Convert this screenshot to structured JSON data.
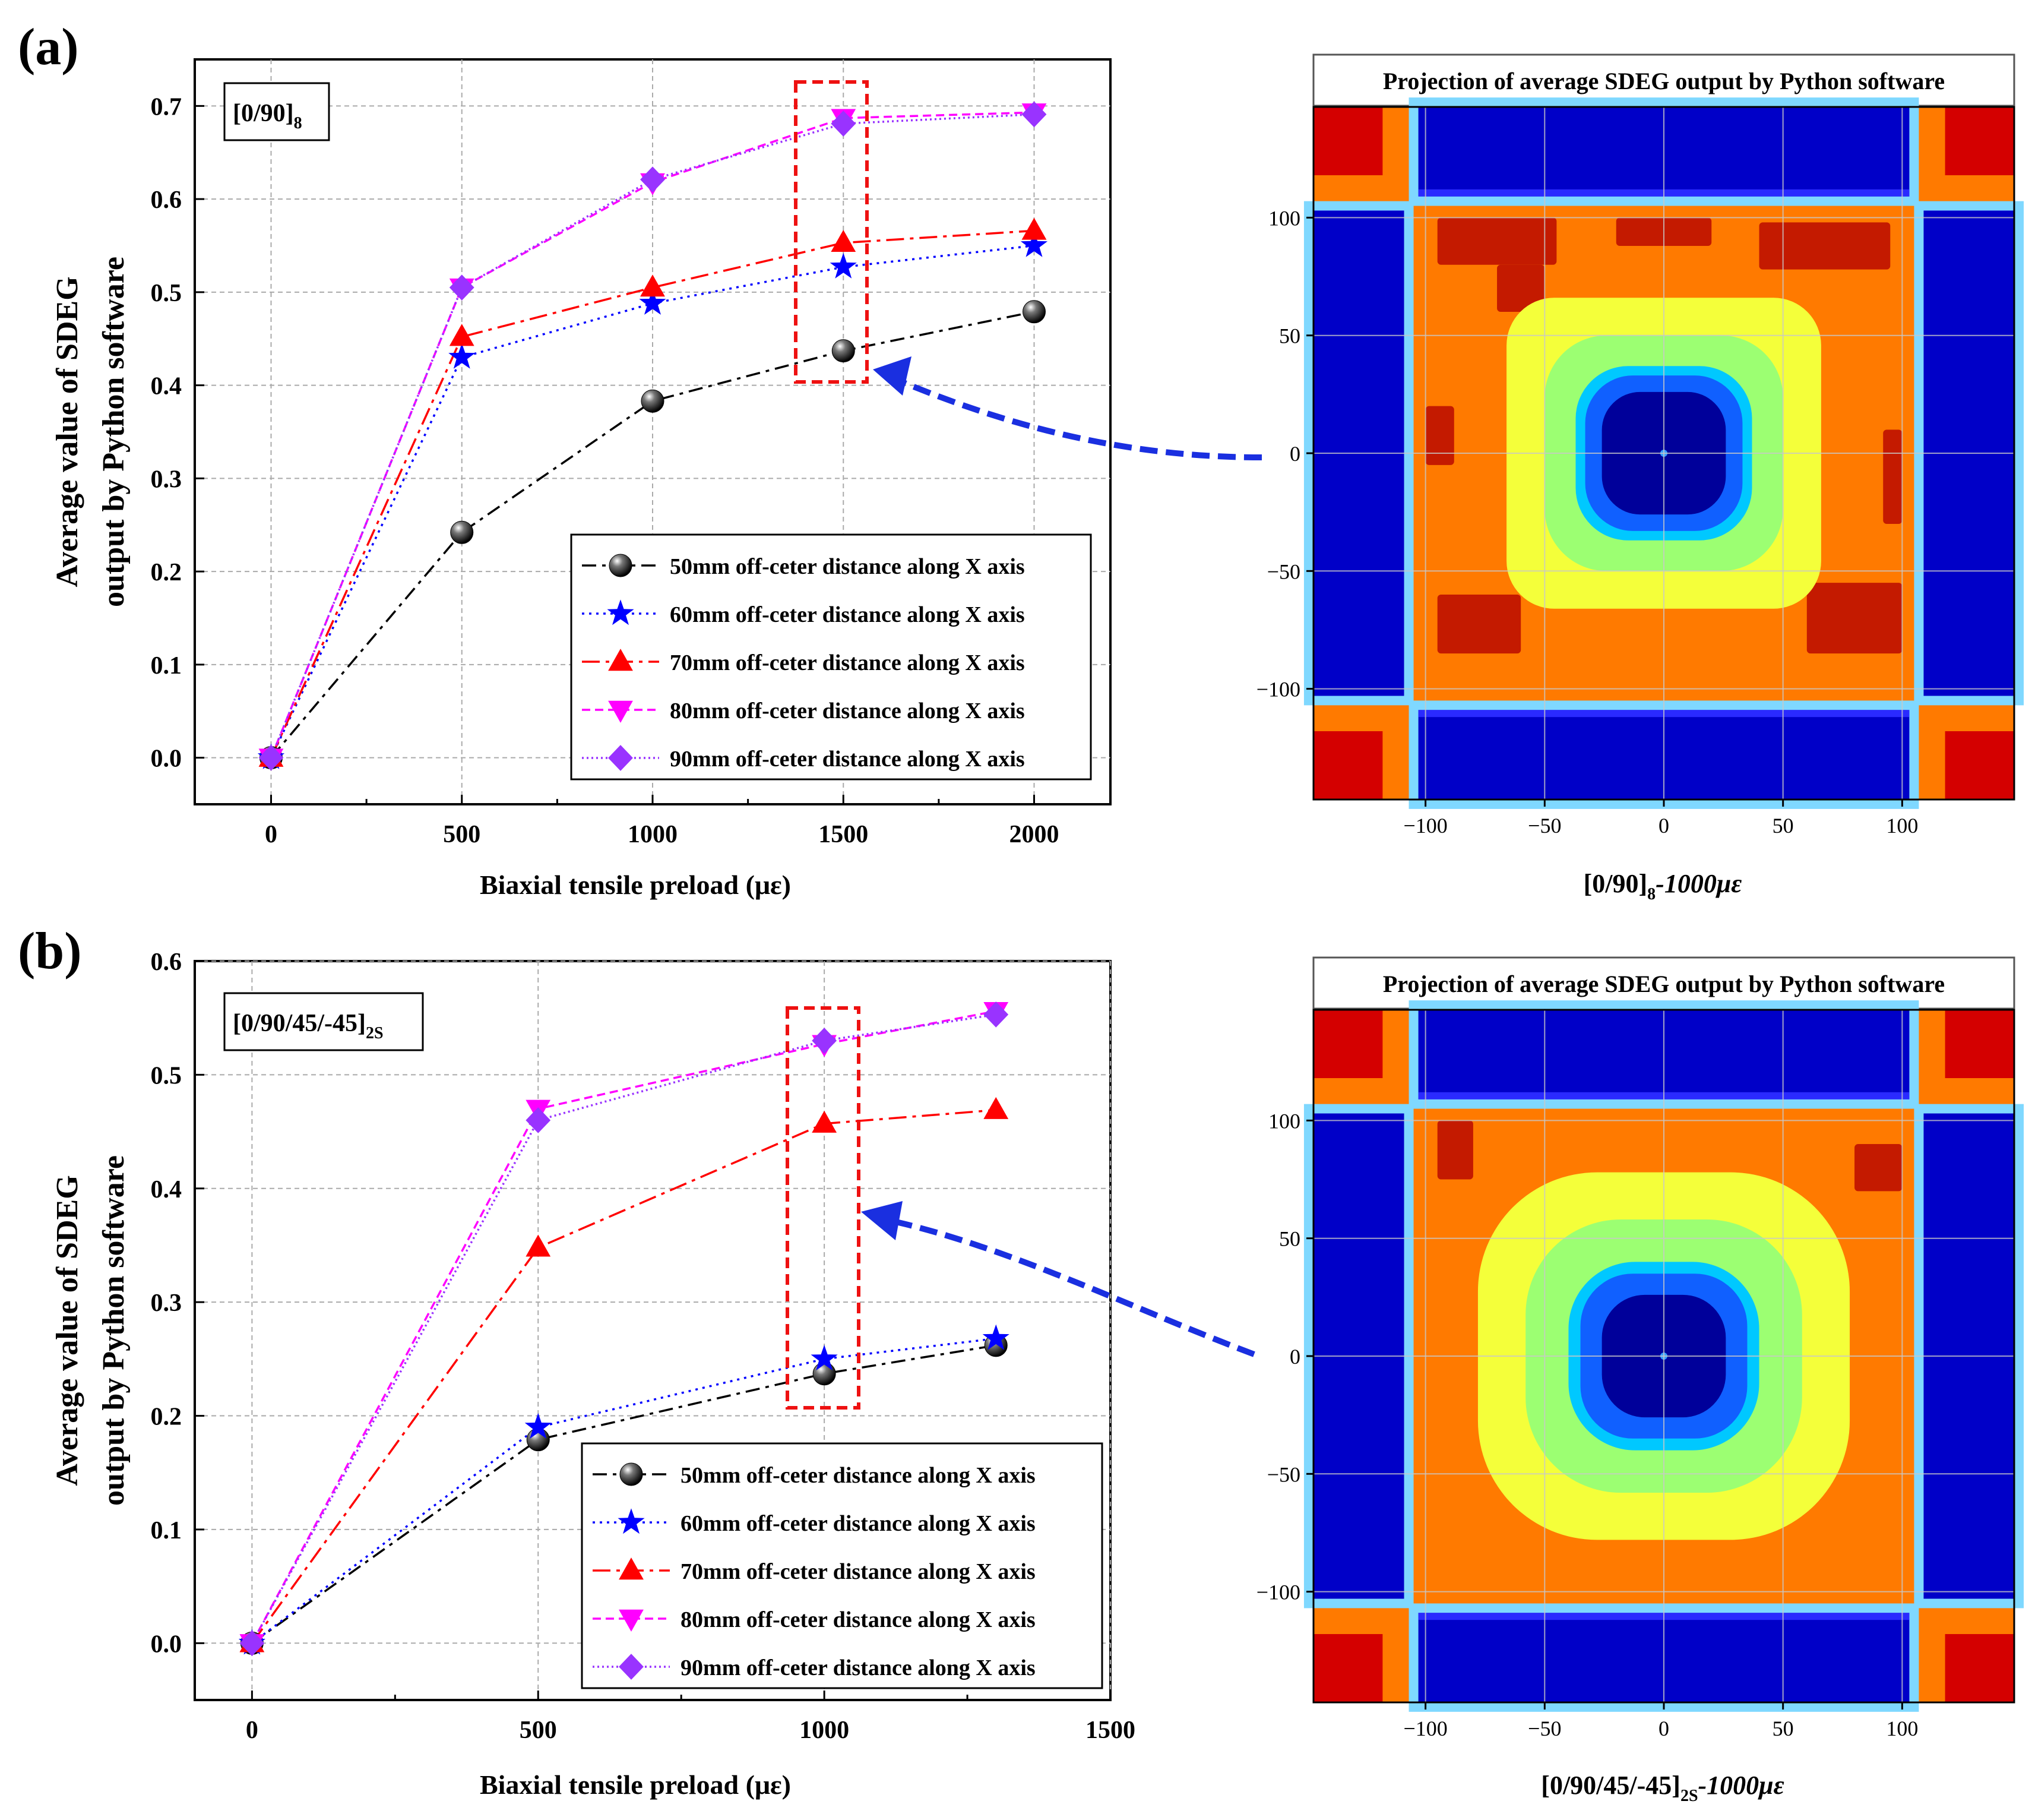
{
  "panels": [
    {
      "label": "(a)",
      "chart": {
        "type": "line",
        "xlabel": "Biaxial tensile preload (με)",
        "ylabel_line1": "Average value of SDEG",
        "ylabel_line2": "output by Python software",
        "xlim": [
          -200,
          2200
        ],
        "ylim": [
          -0.05,
          0.75
        ],
        "xticks": [
          0,
          500,
          1000,
          1500,
          2000
        ],
        "yticks": [
          0.0,
          0.1,
          0.2,
          0.3,
          0.4,
          0.5,
          0.6,
          0.7
        ],
        "ytick_labels": [
          "0.0",
          "0.1",
          "0.2",
          "0.3",
          "0.4",
          "0.5",
          "0.6",
          "0.7"
        ],
        "grid": true,
        "legend_position": "bottom-right",
        "annotation": "[0/90]",
        "annotation_sub": "8",
        "highlight_x": 1500,
        "series": [
          {
            "name": "50mm off-ceter distance along X axis",
            "marker": "sphere",
            "color": "#000000",
            "dash": "24 10 6 10",
            "x": [
              0,
              500,
              1000,
              1500,
              2000
            ],
            "y": [
              0.0,
              0.242,
              0.383,
              0.437,
              0.479
            ]
          },
          {
            "name": "60mm off-ceter distance along X axis",
            "marker": "star",
            "color": "#0000ff",
            "dash": "4 8",
            "x": [
              0,
              500,
              1000,
              1500,
              2000
            ],
            "y": [
              0.0,
              0.43,
              0.488,
              0.527,
              0.55
            ]
          },
          {
            "name": "70mm off-ceter distance along X axis",
            "marker": "triangle-up",
            "color": "#ff0000",
            "dash": "30 10 6 10",
            "x": [
              0,
              500,
              1000,
              1500,
              2000
            ],
            "y": [
              0.0,
              0.452,
              0.505,
              0.553,
              0.566
            ]
          },
          {
            "name": "80mm off-ceter distance along X axis",
            "marker": "triangle-down",
            "color": "#ff00ff",
            "dash": "14 8",
            "x": [
              0,
              500,
              1000,
              1500,
              2000
            ],
            "y": [
              0.0,
              0.505,
              0.618,
              0.687,
              0.693
            ]
          },
          {
            "name": "90mm off-ceter distance along X axis",
            "marker": "diamond",
            "color": "#9933ff",
            "dash": "3 5",
            "x": [
              0,
              500,
              1000,
              1500,
              2000
            ],
            "y": [
              0.0,
              0.505,
              0.621,
              0.681,
              0.691
            ]
          }
        ]
      },
      "contour": {
        "title": "Projection of average SDEG output by Python software",
        "caption": "[0/90]",
        "caption_sub": "8",
        "caption_suffix": "-1000με",
        "ticks": [
          -100,
          -50,
          0,
          50,
          100
        ],
        "tick_labels": [
          "−100",
          "−50",
          "0",
          "50",
          "100"
        ],
        "range": [
          -147,
          147
        ],
        "colors": {
          "outer": "#d40000",
          "orange": "#ff7a00",
          "dark_red": "#c41a00",
          "yellow": "#f4ff3a",
          "light_green": "#9cff72",
          "cyan": "#00c8ff",
          "blue": "#1060ff",
          "navy": "#00009a",
          "arm_blue": "#0000c8"
        },
        "variant": "a"
      }
    },
    {
      "label": "(b)",
      "chart": {
        "type": "line",
        "xlabel": "Biaxial tensile preload (με)",
        "ylabel_line1": "Average value of SDEG",
        "ylabel_line2": "output by Python software",
        "xlim": [
          -100,
          1500
        ],
        "ylim": [
          -0.05,
          0.6
        ],
        "xticks": [
          0,
          500,
          1000,
          1500
        ],
        "yticks": [
          0.0,
          0.1,
          0.2,
          0.3,
          0.4,
          0.5,
          0.6
        ],
        "ytick_labels": [
          "0.0",
          "0.1",
          "0.2",
          "0.3",
          "0.4",
          "0.5",
          "0.6"
        ],
        "grid": true,
        "legend_position": "bottom-right",
        "annotation": "[0/90/45/-45]",
        "annotation_sub": "2S",
        "highlight_x": 1000,
        "series": [
          {
            "name": "50mm off-ceter distance along X axis",
            "marker": "sphere",
            "color": "#000000",
            "dash": "24 10 6 10",
            "x": [
              0,
              500,
              1000,
              1300
            ],
            "y": [
              0.0,
              0.179,
              0.237,
              0.262
            ]
          },
          {
            "name": "60mm off-ceter distance along X axis",
            "marker": "star",
            "color": "#0000ff",
            "dash": "4 8",
            "x": [
              0,
              500,
              1000,
              1300
            ],
            "y": [
              0.0,
              0.19,
              0.25,
              0.268
            ]
          },
          {
            "name": "70mm off-ceter distance along X axis",
            "marker": "triangle-up",
            "color": "#ff0000",
            "dash": "30 10 6 10",
            "x": [
              0,
              500,
              1000,
              1300
            ],
            "y": [
              0.0,
              0.348,
              0.457,
              0.469
            ]
          },
          {
            "name": "80mm off-ceter distance along X axis",
            "marker": "triangle-down",
            "color": "#ff00ff",
            "dash": "14 8",
            "x": [
              0,
              500,
              1000,
              1300
            ],
            "y": [
              0.0,
              0.47,
              0.527,
              0.556
            ]
          },
          {
            "name": "90mm off-ceter distance along X axis",
            "marker": "diamond",
            "color": "#9933ff",
            "dash": "3 5",
            "x": [
              0,
              500,
              1000,
              1300
            ],
            "y": [
              0.0,
              0.46,
              0.53,
              0.553
            ]
          }
        ]
      },
      "contour": {
        "title": "Projection of average SDEG output by Python software",
        "caption": "[0/90/45/-45]",
        "caption_sub": "2S",
        "caption_suffix": "-1000με",
        "ticks": [
          -100,
          -50,
          0,
          50,
          100
        ],
        "tick_labels": [
          "−100",
          "−50",
          "0",
          "50",
          "100"
        ],
        "range": [
          -147,
          147
        ],
        "colors": {
          "outer": "#d40000",
          "orange": "#ff7a00",
          "dark_red": "#c41a00",
          "yellow": "#f4ff3a",
          "light_green": "#9cff72",
          "cyan": "#00c8ff",
          "blue": "#1060ff",
          "navy": "#00009a",
          "arm_blue": "#0000c8"
        },
        "variant": "b"
      }
    }
  ],
  "chart_data": [
    {
      "type": "line",
      "title": "",
      "xlabel": "Biaxial tensile preload (με)",
      "ylabel": "Average value of SDEG output by Python software",
      "x": [
        0,
        500,
        1000,
        1500,
        2000
      ],
      "xlim": [
        -200,
        2200
      ],
      "ylim": [
        -0.05,
        0.75
      ],
      "series": [
        {
          "name": "50mm off-ceter distance along X axis",
          "values": [
            0.0,
            0.242,
            0.383,
            0.437,
            0.479
          ]
        },
        {
          "name": "60mm off-ceter distance along X axis",
          "values": [
            0.0,
            0.43,
            0.488,
            0.527,
            0.55
          ]
        },
        {
          "name": "70mm off-ceter distance along X axis",
          "values": [
            0.0,
            0.452,
            0.505,
            0.553,
            0.566
          ]
        },
        {
          "name": "80mm off-ceter distance along X axis",
          "values": [
            0.0,
            0.505,
            0.618,
            0.687,
            0.693
          ]
        },
        {
          "name": "90mm off-ceter distance along X axis",
          "values": [
            0.0,
            0.505,
            0.621,
            0.681,
            0.691
          ]
        }
      ],
      "annotation": "[0/90]8",
      "legend": "bottom-right",
      "grid": true
    },
    {
      "type": "line",
      "title": "",
      "xlabel": "Biaxial tensile preload (με)",
      "ylabel": "Average value of SDEG output by Python software",
      "x": [
        0,
        500,
        1000,
        1300
      ],
      "xlim": [
        -100,
        1500
      ],
      "ylim": [
        -0.05,
        0.6
      ],
      "series": [
        {
          "name": "50mm off-ceter distance along X axis",
          "values": [
            0.0,
            0.179,
            0.237,
            0.262
          ]
        },
        {
          "name": "60mm off-ceter distance along X axis",
          "values": [
            0.0,
            0.19,
            0.25,
            0.268
          ]
        },
        {
          "name": "70mm off-ceter distance along X axis",
          "values": [
            0.0,
            0.348,
            0.457,
            0.469
          ]
        },
        {
          "name": "80mm off-ceter distance along X axis",
          "values": [
            0.0,
            0.47,
            0.527,
            0.556
          ]
        },
        {
          "name": "90mm off-ceter distance along X axis",
          "values": [
            0.0,
            0.46,
            0.53,
            0.553
          ]
        }
      ],
      "annotation": "[0/90/45/-45]2S",
      "legend": "bottom-right",
      "grid": true
    },
    {
      "type": "heatmap",
      "title": "Projection of average SDEG output by Python software",
      "caption": "[0/90]8-1000με",
      "xticks": [
        -100,
        -50,
        0,
        50,
        100
      ],
      "yticks": [
        -100,
        -50,
        0,
        50,
        100
      ]
    },
    {
      "type": "heatmap",
      "title": "Projection of average SDEG output by Python software",
      "caption": "[0/90/45/-45]2S-1000με",
      "xticks": [
        -100,
        -50,
        0,
        50,
        100
      ],
      "yticks": [
        -100,
        -50,
        0,
        50,
        100
      ]
    }
  ]
}
